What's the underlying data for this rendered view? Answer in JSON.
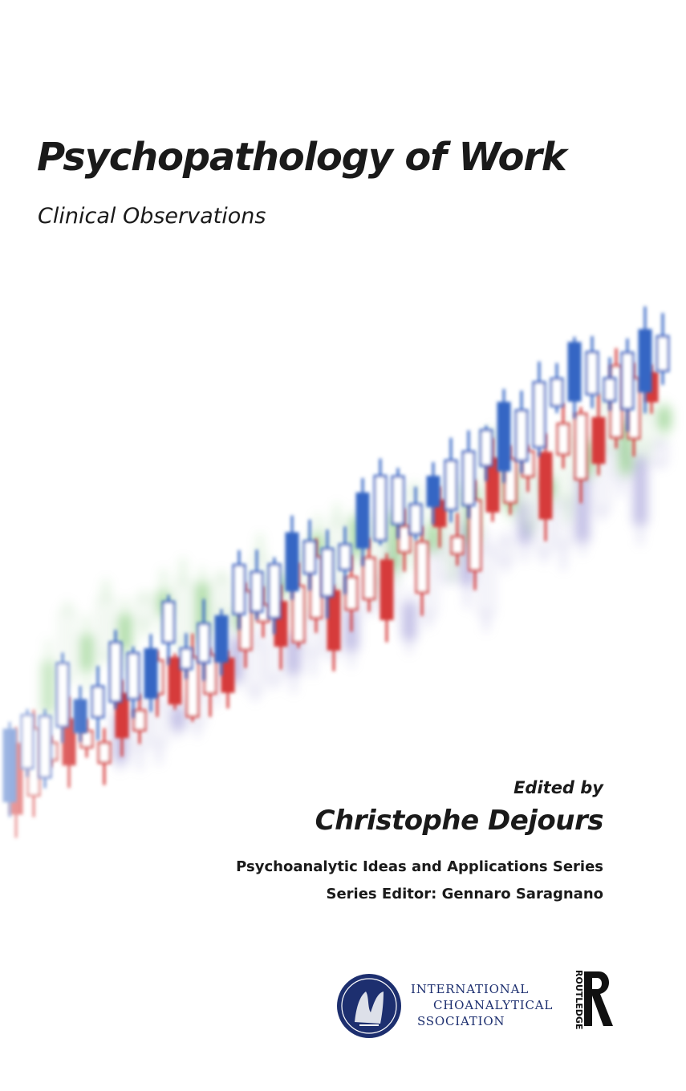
{
  "book": {
    "title": "Psychopathology of Work",
    "subtitle": "Clinical Observations",
    "edited_by": "Edited by",
    "editor": "Christophe Dejours",
    "series": "Psychoanalytic Ideas and Applications Series",
    "series_editor": "Series Editor: Gennaro Saragnano"
  },
  "logos": {
    "ipa": {
      "line1": "INTERNATIONAL",
      "line2": "CHOANALYTICAL",
      "line3": "SSOCIATION",
      "text_color": "#1d2f6f"
    },
    "publisher": {
      "icon": "routledge-logo",
      "label": "ROUTLEDGE"
    }
  },
  "artwork": {
    "type": "candlestick-illustration",
    "colors": {
      "blue": "#3566c4",
      "red": "#d63a3a",
      "green": "#6bbf5e",
      "purple": "#8c86cf"
    }
  }
}
